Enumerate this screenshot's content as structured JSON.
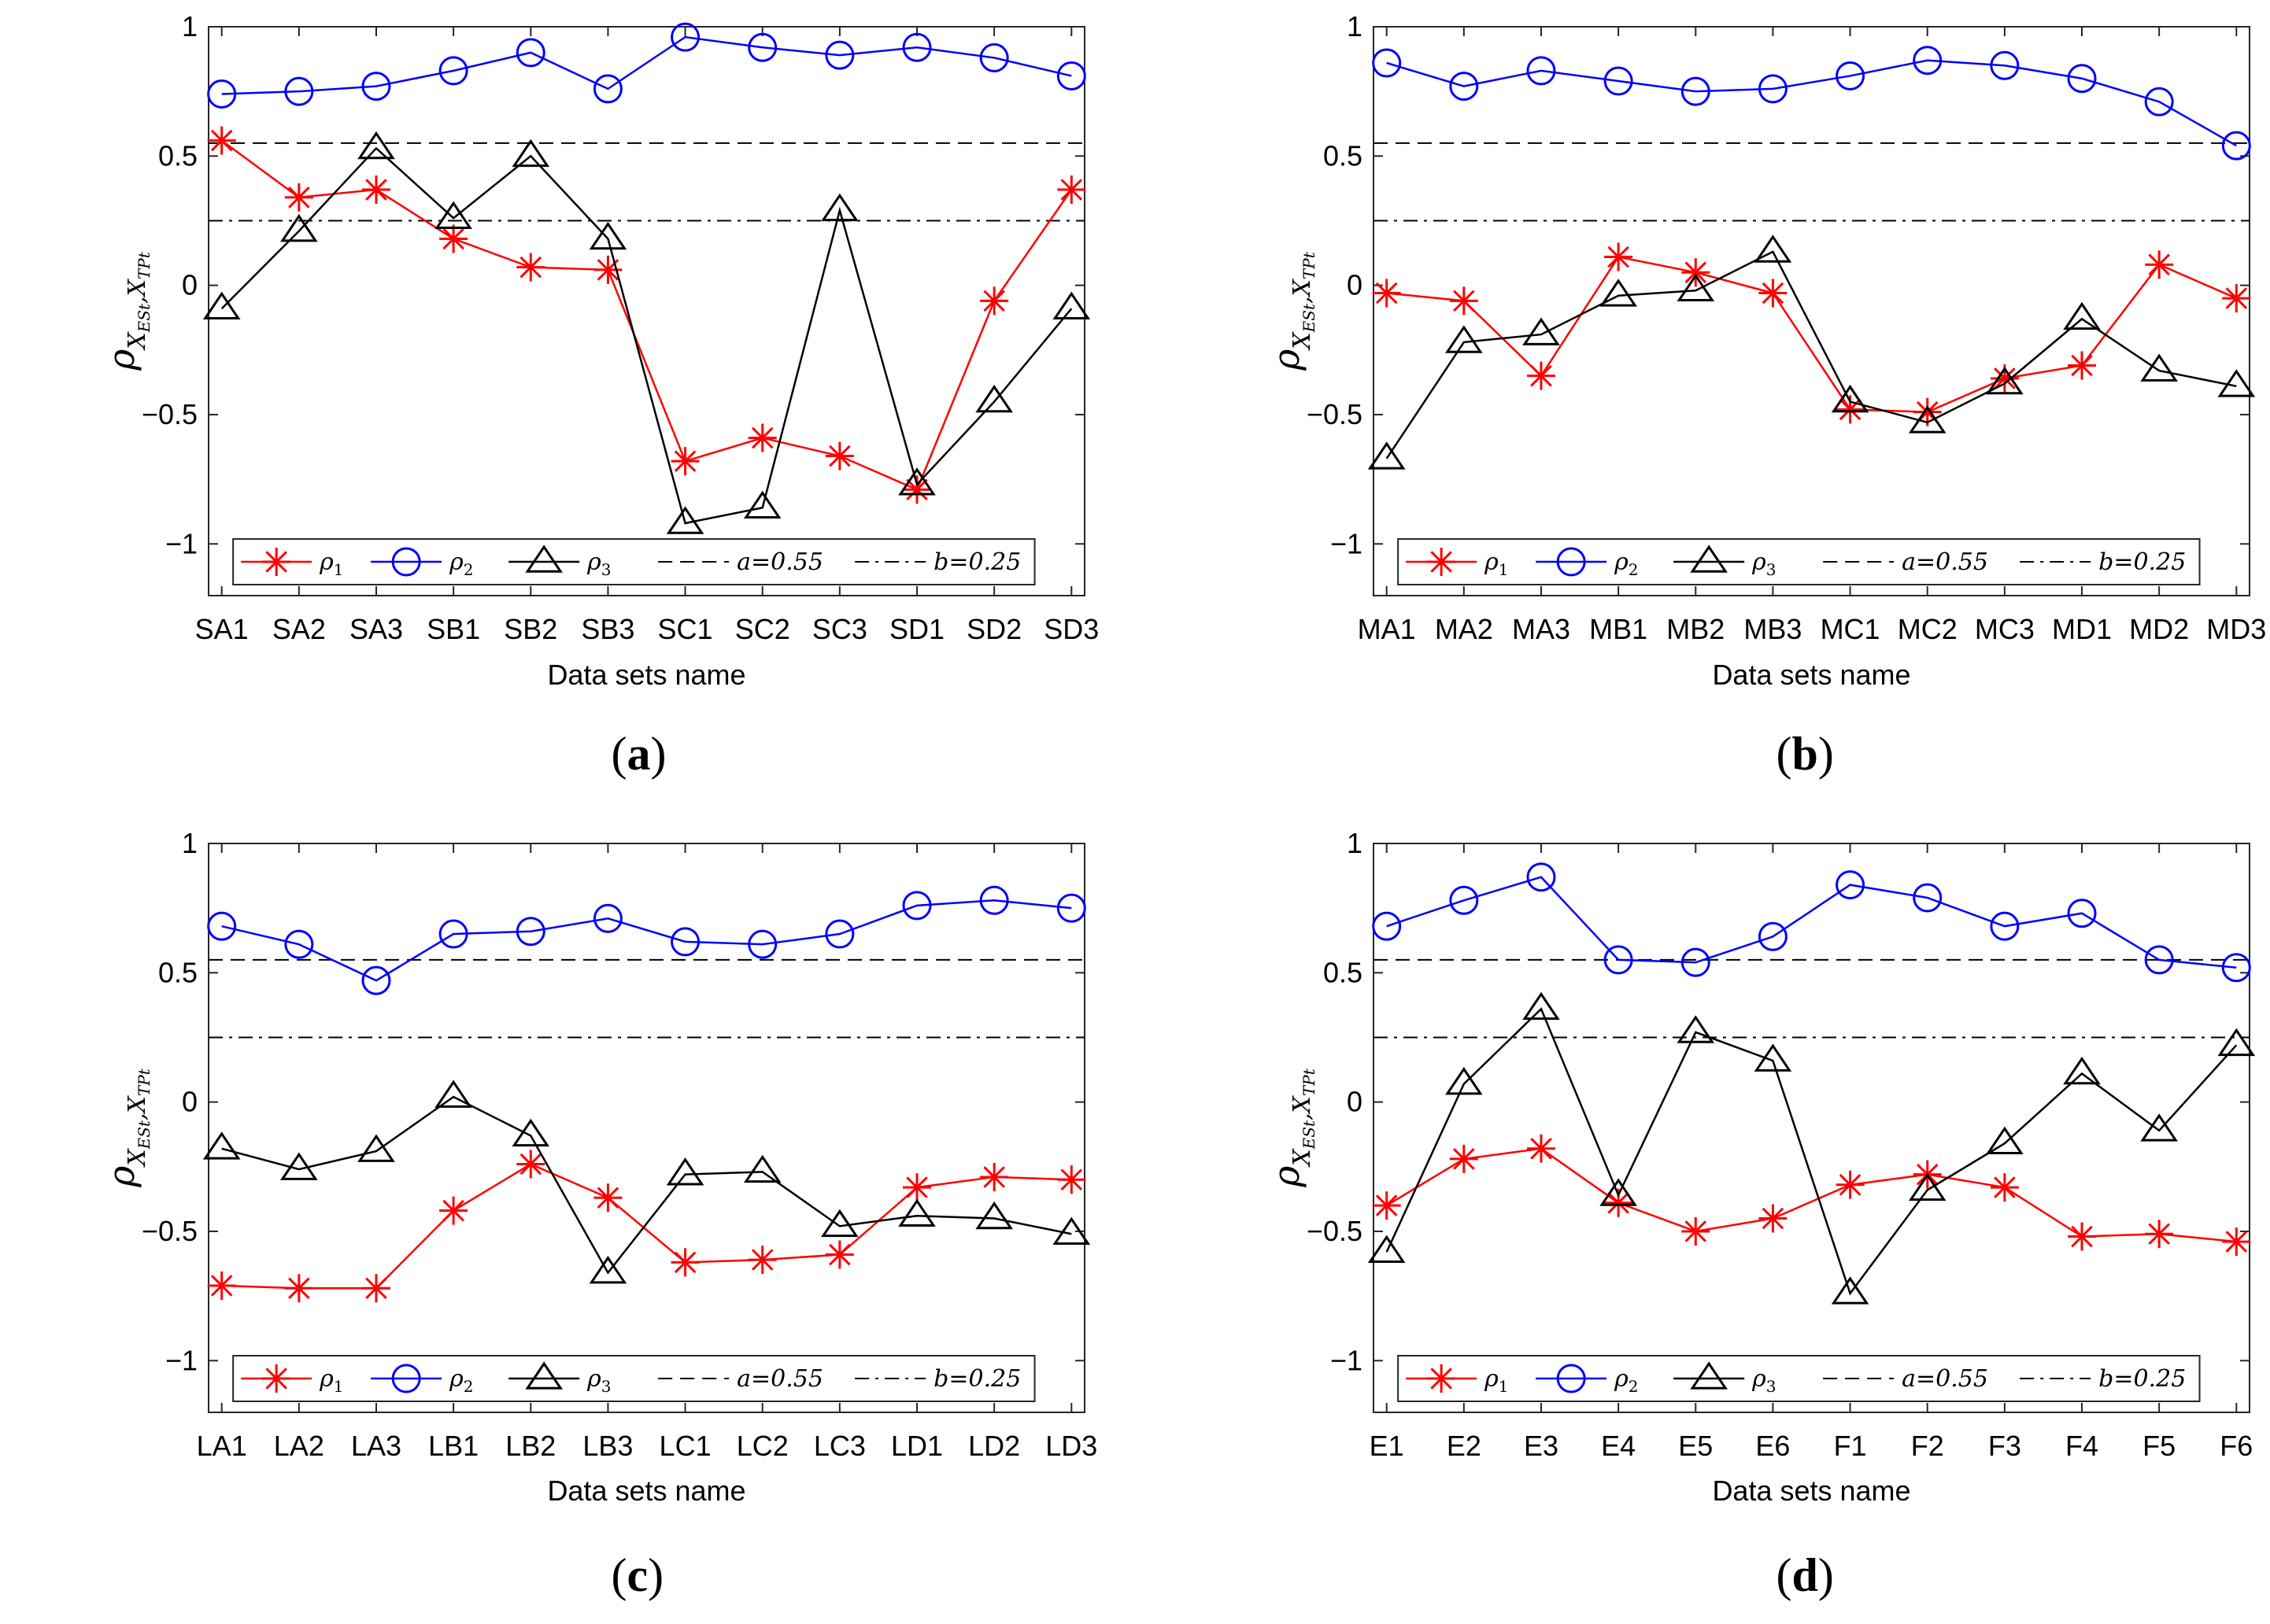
{
  "figure": {
    "colors": {
      "rho1": "#ff0000",
      "rho2": "#0000ff",
      "rho3": "#000000",
      "ref": "#000000"
    },
    "y_axis_label": {
      "main": "ρ",
      "sub1": "X",
      "sub1b": "ESt",
      "comma": ",",
      "sub2": "X",
      "sub2b": "TPt"
    },
    "x_axis_label": "Data sets name",
    "legend": [
      {
        "key": "rho1",
        "symbol": "ρ",
        "sub": "1"
      },
      {
        "key": "rho2",
        "symbol": "ρ",
        "sub": "2"
      },
      {
        "key": "rho3",
        "symbol": "ρ",
        "sub": "3"
      },
      {
        "key": "a",
        "text": "a=0.55"
      },
      {
        "key": "b",
        "text": "b=0.25"
      }
    ]
  },
  "chart_data": [
    {
      "panel": "(a)",
      "panel_open": "(",
      "panel_letter": "a",
      "panel_close": ")",
      "type": "line",
      "xlabel": "Data sets name",
      "ylabel": "ρ X_ESt, X_TPt",
      "ylim": [
        -1.2,
        1
      ],
      "yticks": [
        "1",
        "0.5",
        "0",
        "−0.5",
        "−1"
      ],
      "ytick_values": [
        1,
        0.5,
        0,
        -0.5,
        -1
      ],
      "categories": [
        "SA1",
        "SA2",
        "SA3",
        "SB1",
        "SB2",
        "SB3",
        "SC1",
        "SC2",
        "SC3",
        "SD1",
        "SD2",
        "SD3"
      ],
      "series": [
        {
          "name": "ρ1",
          "marker": "star",
          "color": "#ff0000",
          "values": [
            0.56,
            0.34,
            0.37,
            0.18,
            0.07,
            0.06,
            -0.68,
            -0.59,
            -0.66,
            -0.79,
            -0.06,
            0.37
          ]
        },
        {
          "name": "ρ2",
          "marker": "circle",
          "color": "#0000ff",
          "values": [
            0.74,
            0.75,
            0.77,
            0.83,
            0.9,
            0.76,
            0.96,
            0.92,
            0.89,
            0.92,
            0.88,
            0.81
          ]
        },
        {
          "name": "ρ3",
          "marker": "triangle",
          "color": "#000000",
          "values": [
            -0.09,
            0.21,
            0.53,
            0.26,
            0.5,
            0.18,
            -0.92,
            -0.86,
            0.29,
            -0.77,
            -0.45,
            -0.09
          ]
        }
      ],
      "reference_lines": [
        {
          "name": "a",
          "value": 0.55,
          "style": "dashed"
        },
        {
          "name": "b",
          "value": 0.25,
          "style": "dashdot"
        }
      ]
    },
    {
      "panel": "(b)",
      "panel_open": "(",
      "panel_letter": "b",
      "panel_close": ")",
      "type": "line",
      "xlabel": "Data sets name",
      "ylabel": "ρ X_ESt, X_TPt",
      "ylim": [
        -1.2,
        1
      ],
      "yticks": [
        "1",
        "0.5",
        "0",
        "−0.5",
        "−1"
      ],
      "ytick_values": [
        1,
        0.5,
        0,
        -0.5,
        -1
      ],
      "categories": [
        "MA1",
        "MA2",
        "MA3",
        "MB1",
        "MB2",
        "MB3",
        "MC1",
        "MC2",
        "MC3",
        "MD1",
        "MD2",
        "MD3"
      ],
      "series": [
        {
          "name": "ρ1",
          "marker": "star",
          "color": "#ff0000",
          "values": [
            -0.03,
            -0.06,
            -0.35,
            0.11,
            0.05,
            -0.03,
            -0.48,
            -0.49,
            -0.36,
            -0.31,
            0.08,
            -0.05
          ]
        },
        {
          "name": "ρ2",
          "marker": "circle",
          "color": "#0000ff",
          "values": [
            0.86,
            0.77,
            0.83,
            0.79,
            0.75,
            0.76,
            0.81,
            0.87,
            0.85,
            0.8,
            0.71,
            0.54
          ]
        },
        {
          "name": "ρ3",
          "marker": "triangle",
          "color": "#000000",
          "values": [
            -0.67,
            -0.22,
            -0.19,
            -0.04,
            -0.02,
            0.13,
            -0.45,
            -0.53,
            -0.38,
            -0.13,
            -0.33,
            -0.39
          ]
        }
      ],
      "reference_lines": [
        {
          "name": "a",
          "value": 0.55,
          "style": "dashed"
        },
        {
          "name": "b",
          "value": 0.25,
          "style": "dashdot"
        }
      ]
    },
    {
      "panel": "(c)",
      "panel_open": "(",
      "panel_letter": "c",
      "panel_close": ")",
      "type": "line",
      "xlabel": "Data sets name",
      "ylabel": "ρ X_ESt, X_TPt",
      "ylim": [
        -1.2,
        1
      ],
      "yticks": [
        "1",
        "0.5",
        "0",
        "−0.5",
        "−1"
      ],
      "ytick_values": [
        1,
        0.5,
        0,
        -0.5,
        -1
      ],
      "categories": [
        "LA1",
        "LA2",
        "LA3",
        "LB1",
        "LB2",
        "LB3",
        "LC1",
        "LC2",
        "LC3",
        "LD1",
        "LD2",
        "LD3"
      ],
      "series": [
        {
          "name": "ρ1",
          "marker": "star",
          "color": "#ff0000",
          "values": [
            -0.71,
            -0.72,
            -0.72,
            -0.42,
            -0.24,
            -0.37,
            -0.62,
            -0.61,
            -0.59,
            -0.33,
            -0.29,
            -0.3
          ]
        },
        {
          "name": "ρ2",
          "marker": "circle",
          "color": "#0000ff",
          "values": [
            0.68,
            0.61,
            0.47,
            0.65,
            0.66,
            0.71,
            0.62,
            0.61,
            0.65,
            0.76,
            0.78,
            0.75
          ]
        },
        {
          "name": "ρ3",
          "marker": "triangle",
          "color": "#000000",
          "values": [
            -0.18,
            -0.26,
            -0.19,
            0.02,
            -0.13,
            -0.66,
            -0.28,
            -0.27,
            -0.48,
            -0.44,
            -0.45,
            -0.51
          ]
        }
      ],
      "reference_lines": [
        {
          "name": "a",
          "value": 0.55,
          "style": "dashed"
        },
        {
          "name": "b",
          "value": 0.25,
          "style": "dashdot"
        }
      ]
    },
    {
      "panel": "(d)",
      "panel_open": "(",
      "panel_letter": "d",
      "panel_close": ")",
      "type": "line",
      "xlabel": "Data sets name",
      "ylabel": "ρ X_ESt, X_TPt",
      "ylim": [
        -1.2,
        1
      ],
      "yticks": [
        "1",
        "0.5",
        "0",
        "−0.5",
        "−1"
      ],
      "ytick_values": [
        1,
        0.5,
        0,
        -0.5,
        -1
      ],
      "categories": [
        "E1",
        "E2",
        "E3",
        "E4",
        "E5",
        "E6",
        "F1",
        "F2",
        "F3",
        "F4",
        "F5",
        "F6"
      ],
      "series": [
        {
          "name": "ρ1",
          "marker": "star",
          "color": "#ff0000",
          "values": [
            -0.4,
            -0.22,
            -0.18,
            -0.39,
            -0.5,
            -0.45,
            -0.32,
            -0.28,
            -0.33,
            -0.52,
            -0.51,
            -0.54
          ]
        },
        {
          "name": "ρ2",
          "marker": "circle",
          "color": "#0000ff",
          "values": [
            0.68,
            0.78,
            0.87,
            0.55,
            0.54,
            0.64,
            0.84,
            0.79,
            0.68,
            0.73,
            0.55,
            0.52
          ]
        },
        {
          "name": "ρ3",
          "marker": "triangle",
          "color": "#000000",
          "values": [
            -0.58,
            0.07,
            0.36,
            -0.36,
            0.27,
            0.16,
            -0.74,
            -0.34,
            -0.16,
            0.11,
            -0.11,
            0.22
          ]
        }
      ],
      "reference_lines": [
        {
          "name": "a",
          "value": 0.55,
          "style": "dashed"
        },
        {
          "name": "b",
          "value": 0.25,
          "style": "dashdot"
        }
      ]
    }
  ]
}
